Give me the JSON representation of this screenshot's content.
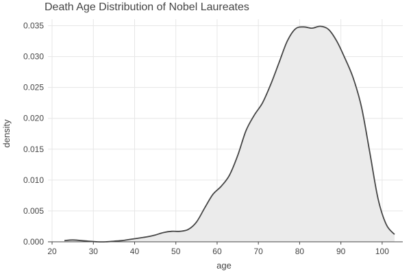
{
  "chart_data": {
    "type": "area",
    "title": "Death Age Distribution of Nobel Laureates",
    "xlabel": "age",
    "ylabel": "density",
    "xlim": [
      19,
      105
    ],
    "ylim": [
      0,
      0.0355
    ],
    "x_ticks": [
      20,
      30,
      40,
      50,
      60,
      70,
      80,
      90,
      100
    ],
    "y_ticks": [
      0.0,
      0.005,
      0.01,
      0.015,
      0.02,
      0.025,
      0.03,
      0.035
    ],
    "y_tick_labels": [
      "0.000",
      "0.005",
      "0.010",
      "0.015",
      "0.020",
      "0.025",
      "0.030",
      "0.035"
    ],
    "grid": true,
    "colors": {
      "line": "#444444",
      "fill": "#ebebeb",
      "grid": "#e6e6e6"
    },
    "series": [
      {
        "x": [
          23,
          25,
          27,
          29,
          31,
          33,
          35,
          37,
          39,
          41,
          43,
          45,
          47,
          49,
          51,
          53,
          55,
          57,
          59,
          61,
          63,
          65,
          67,
          69,
          71,
          73,
          75,
          77,
          79,
          81,
          83,
          85,
          87,
          89,
          91,
          93,
          95,
          97,
          99,
          101,
          103
        ],
        "y": [
          0.0002,
          0.0003,
          0.0002,
          0.0001,
          0.0,
          0.0,
          0.0001,
          0.0002,
          0.0004,
          0.0006,
          0.0008,
          0.0011,
          0.0015,
          0.0017,
          0.0017,
          0.002,
          0.0032,
          0.0055,
          0.0077,
          0.009,
          0.0108,
          0.014,
          0.018,
          0.0205,
          0.0225,
          0.0255,
          0.029,
          0.0325,
          0.0345,
          0.0348,
          0.0346,
          0.0349,
          0.0344,
          0.0325,
          0.0297,
          0.0265,
          0.0218,
          0.0145,
          0.007,
          0.0028,
          0.0012
        ]
      }
    ]
  }
}
